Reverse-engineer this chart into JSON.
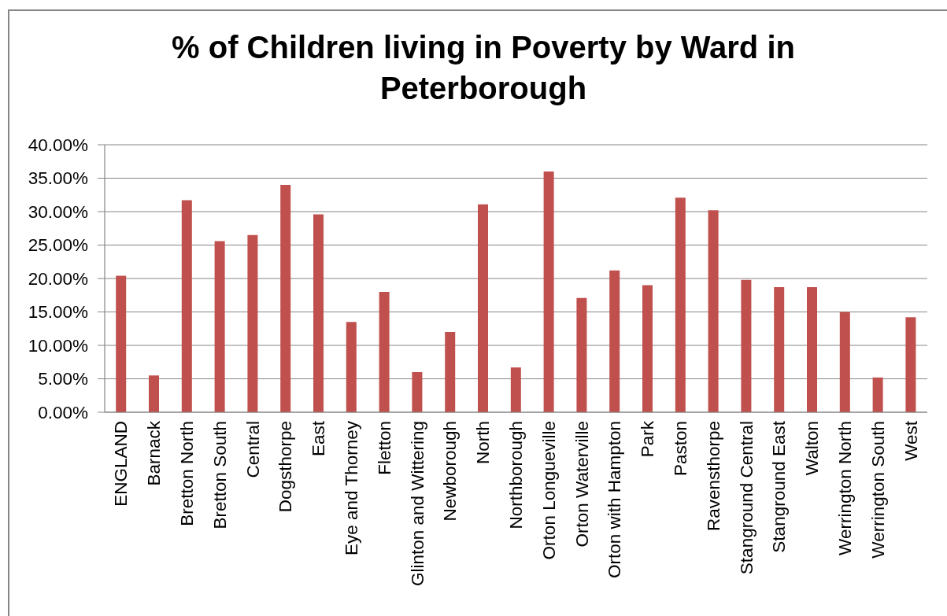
{
  "chart_data": {
    "type": "bar",
    "title": "% of Children living in Poverty by Ward in Peterborough",
    "categories": [
      "ENGLAND",
      "Barnack",
      "Bretton North",
      "Bretton South",
      "Central",
      "Dogsthorpe",
      "East",
      "Eye and Thorney",
      "Fletton",
      "Glinton and Wittering",
      "Newborough",
      "North",
      "Northborough",
      "Orton Longueville",
      "Orton Waterville",
      "Orton with Hampton",
      "Park",
      "Paston",
      "Ravensthorpe",
      "Stanground Central",
      "Stanground East",
      "Walton",
      "Werrington North",
      "Werrington South",
      "West"
    ],
    "values": [
      20.4,
      5.5,
      31.7,
      25.6,
      26.5,
      34.0,
      29.6,
      13.5,
      18.0,
      6.0,
      12.0,
      31.1,
      6.7,
      36.0,
      17.1,
      21.2,
      19.0,
      32.1,
      30.2,
      19.8,
      18.7,
      18.7,
      15.0,
      5.2,
      14.2
    ],
    "color": "#c0504d",
    "ylim": [
      0,
      40
    ],
    "yticks": [
      {
        "value": 0,
        "label": "0.00%"
      },
      {
        "value": 5,
        "label": "5.00%"
      },
      {
        "value": 10,
        "label": "10.00%"
      },
      {
        "value": 15,
        "label": "15.00%"
      },
      {
        "value": 20,
        "label": "20.00%"
      },
      {
        "value": 25,
        "label": "25.00%"
      },
      {
        "value": 30,
        "label": "30.00%"
      },
      {
        "value": 35,
        "label": "35.00%"
      },
      {
        "value": 40,
        "label": "40.00%"
      }
    ],
    "grid": "y"
  }
}
